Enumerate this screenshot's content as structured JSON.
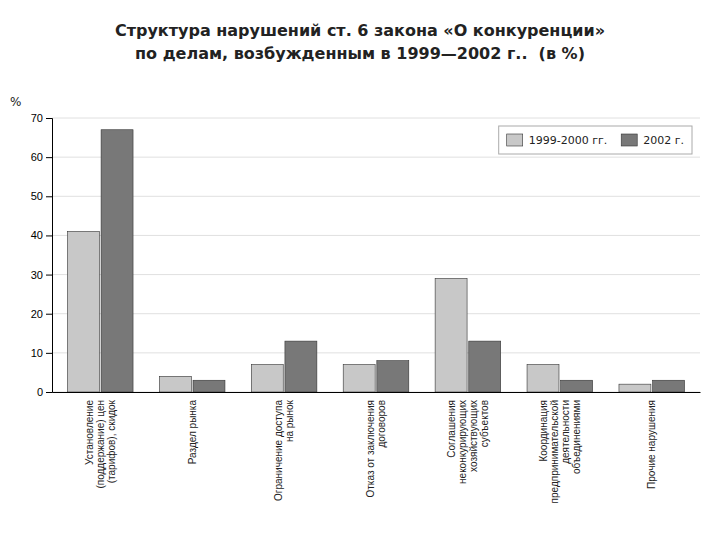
{
  "chart_data": {
    "type": "bar",
    "title": "Структура нарушений ст. 6 закона «О конкуренции»\nпо делам, возбужденным в 1999—2002 г..  (в %)",
    "ylabel": "%",
    "categories": [
      "Установление\n(поддержание) цен\n(тарифов), скидок",
      "Раздел рынка",
      "Ограничение доступа\nна рынок",
      "Отказ от заключения\nдоговоров",
      "Соглашения\nнеконкурирующих\nхозяйствующих\nсубъектов",
      "Координация\nпредпринимательской\nдеятельности\nобъединениями",
      "Прочие нарушения"
    ],
    "series": [
      {
        "name": "1999-2000 гг.",
        "color": "#c8c8c8",
        "values": [
          41,
          4,
          7,
          7,
          29,
          7,
          2
        ]
      },
      {
        "name": "2002 г.",
        "color": "#787878",
        "values": [
          67,
          3,
          13,
          8,
          13,
          3,
          3
        ]
      }
    ],
    "ylim": [
      0,
      70
    ],
    "yticks": [
      0,
      10,
      20,
      30,
      40,
      50,
      60,
      70
    ],
    "grid": true,
    "legend": "upper right"
  }
}
